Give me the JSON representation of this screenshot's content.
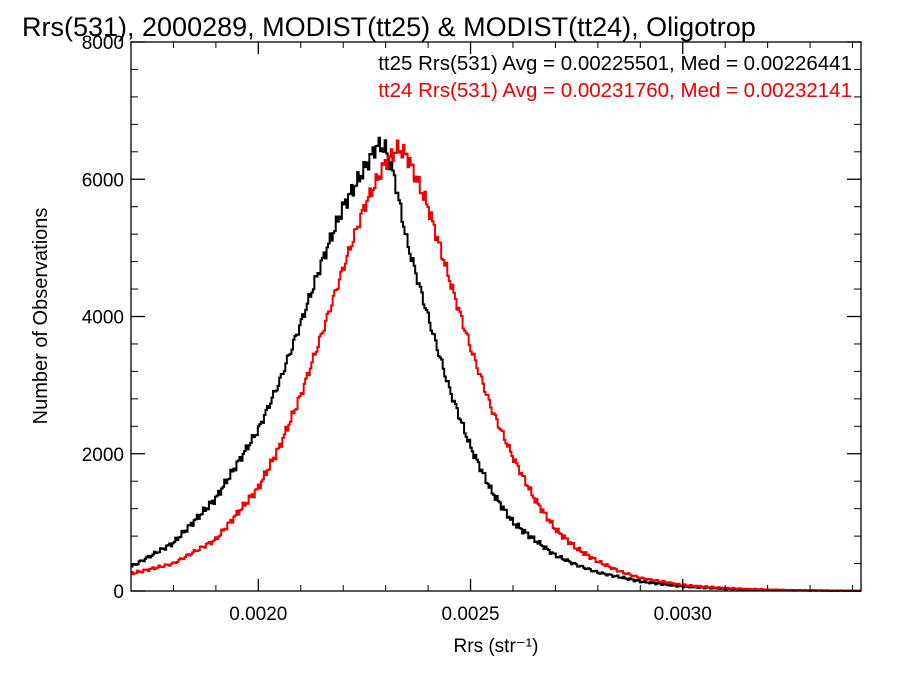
{
  "chart_data": {
    "type": "line",
    "title": "Rrs(531), 2000289, MODIST(tt25) & MODIST(tt24), Oligotrop",
    "xlabel": "Rrs (str⁻¹)",
    "ylabel": "Number of Observations",
    "xlim": [
      0.0017,
      0.00342
    ],
    "ylim": [
      0,
      8000
    ],
    "x_ticks": [
      0.002,
      0.0025,
      0.003
    ],
    "x_tick_labels": [
      "0.0020",
      "0.0025",
      "0.0030"
    ],
    "y_ticks": [
      0,
      2000,
      4000,
      6000,
      8000
    ],
    "y_tick_labels": [
      "0",
      "2000",
      "4000",
      "6000",
      "8000"
    ],
    "grid": false,
    "legend_placement": "top-right",
    "series": [
      {
        "name": "tt25",
        "color": "#000000",
        "stat_label": "tt25 Rrs(531) Avg = 0.00225501, Med = 0.00226441",
        "x": [
          0.0017,
          0.0018,
          0.0019,
          0.002,
          0.00205,
          0.0021,
          0.00215,
          0.0022,
          0.00225,
          0.00228,
          0.0023,
          0.00232,
          0.00235,
          0.0024,
          0.00245,
          0.0025,
          0.00255,
          0.0026,
          0.00265,
          0.0027,
          0.00275,
          0.0028,
          0.0029,
          0.003,
          0.0031,
          0.0032,
          0.0033,
          0.00342
        ],
        "values": [
          350,
          700,
          1350,
          2350,
          3050,
          3900,
          4800,
          5600,
          6150,
          6500,
          6450,
          6050,
          5100,
          4000,
          2950,
          2100,
          1450,
          1000,
          750,
          520,
          380,
          270,
          140,
          65,
          30,
          15,
          8,
          3
        ]
      },
      {
        "name": "tt24",
        "color": "#ee0000",
        "stat_label": "tt24 Rrs(531) Avg = 0.00231760, Med = 0.00232141",
        "x": [
          0.0017,
          0.0018,
          0.0019,
          0.002,
          0.00205,
          0.0021,
          0.00215,
          0.0022,
          0.00225,
          0.0023,
          0.00233,
          0.00235,
          0.0024,
          0.00245,
          0.0025,
          0.00255,
          0.0026,
          0.00265,
          0.0027,
          0.00275,
          0.0028,
          0.00285,
          0.0029,
          0.003,
          0.0031,
          0.0032,
          0.0033,
          0.00342
        ],
        "values": [
          250,
          400,
          750,
          1500,
          2100,
          2850,
          3750,
          4700,
          5600,
          6250,
          6450,
          6350,
          5600,
          4550,
          3550,
          2650,
          1950,
          1350,
          900,
          620,
          430,
          290,
          190,
          85,
          40,
          20,
          8,
          3
        ]
      }
    ]
  }
}
